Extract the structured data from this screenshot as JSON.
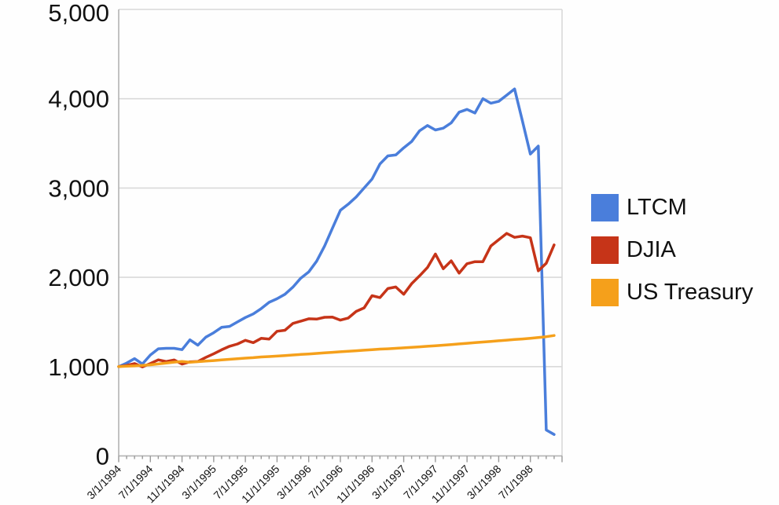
{
  "chart_data": {
    "type": "line",
    "title": "",
    "xlabel": "",
    "ylabel": "",
    "grid": "horizontal",
    "legend_position": "right",
    "ylim": [
      0,
      5000
    ],
    "y_ticks": [
      0,
      1000,
      2000,
      3000,
      4000,
      5000
    ],
    "y_tick_labels": [
      "0",
      "1,000",
      "2,000",
      "3,000",
      "4,000",
      "5,000"
    ],
    "x_axis_major_labels": [
      "3/1/1994",
      "7/1/1994",
      "11/1/1994",
      "3/1/1995",
      "7/1/1995",
      "11/1/1995",
      "3/1/1996",
      "7/1/1996",
      "11/1/1996",
      "3/1/1997",
      "7/1/1997",
      "11/1/1997",
      "3/1/1998",
      "7/1/1998"
    ],
    "x_major_label_every_n_months": 4,
    "x_minor_tick_every_n_months": 1,
    "x": [
      "3/1/1994",
      "4/1/1994",
      "5/1/1994",
      "6/1/1994",
      "7/1/1994",
      "8/1/1994",
      "9/1/1994",
      "10/1/1994",
      "11/1/1994",
      "12/1/1994",
      "1/1/1995",
      "2/1/1995",
      "3/1/1995",
      "4/1/1995",
      "5/1/1995",
      "6/1/1995",
      "7/1/1995",
      "8/1/1995",
      "9/1/1995",
      "10/1/1995",
      "11/1/1995",
      "12/1/1995",
      "1/1/1996",
      "2/1/1996",
      "3/1/1996",
      "4/1/1996",
      "5/1/1996",
      "6/1/1996",
      "7/1/1996",
      "8/1/1996",
      "9/1/1996",
      "10/1/1996",
      "11/1/1996",
      "12/1/1996",
      "1/1/1997",
      "2/1/1997",
      "3/1/1997",
      "4/1/1997",
      "5/1/1997",
      "6/1/1997",
      "7/1/1997",
      "8/1/1997",
      "9/1/1997",
      "10/1/1997",
      "11/1/1997",
      "12/1/1997",
      "1/1/1998",
      "2/1/1998",
      "3/1/1998",
      "4/1/1998",
      "5/1/1998",
      "6/1/1998",
      "7/1/1998",
      "8/1/1998",
      "9/1/1998",
      "10/1/1998"
    ],
    "series": [
      {
        "name": "LTCM",
        "color": "#4a7edb",
        "values": [
          1000,
          1040,
          1090,
          1030,
          1130,
          1200,
          1205,
          1205,
          1190,
          1300,
          1240,
          1330,
          1380,
          1440,
          1450,
          1500,
          1550,
          1590,
          1650,
          1720,
          1760,
          1810,
          1890,
          1990,
          2060,
          2180,
          2350,
          2550,
          2750,
          2820,
          2900,
          3000,
          3100,
          3270,
          3360,
          3370,
          3450,
          3520,
          3640,
          3700,
          3650,
          3670,
          3730,
          3850,
          3880,
          3840,
          4000,
          3950,
          3970,
          4040,
          4110,
          3750,
          3380,
          3470,
          290,
          240
        ]
      },
      {
        "name": "DJIA",
        "color": "#c63418",
        "values": [
          1000,
          1013,
          1034,
          997,
          1035,
          1076,
          1057,
          1075,
          1028,
          1054,
          1057,
          1103,
          1144,
          1188,
          1228,
          1253,
          1295,
          1268,
          1317,
          1308,
          1396,
          1407,
          1484,
          1509,
          1536,
          1532,
          1552,
          1555,
          1521,
          1544,
          1618,
          1658,
          1794,
          1773,
          1874,
          1892,
          1810,
          1928,
          2016,
          2110,
          2261,
          2096,
          2185,
          2047,
          2152,
          2175,
          2175,
          2350,
          2420,
          2492,
          2448,
          2462,
          2443,
          2073,
          2157,
          2363
        ]
      },
      {
        "name": "US Treasury",
        "color": "#f5a01b",
        "values": [
          1000,
          1004,
          1008,
          1013,
          1020,
          1030,
          1040,
          1050,
          1058,
          1048,
          1055,
          1062,
          1068,
          1075,
          1082,
          1089,
          1095,
          1100,
          1108,
          1113,
          1118,
          1124,
          1130,
          1136,
          1142,
          1148,
          1154,
          1160,
          1166,
          1172,
          1178,
          1184,
          1190,
          1196,
          1200,
          1205,
          1210,
          1216,
          1222,
          1228,
          1234,
          1240,
          1247,
          1254,
          1261,
          1268,
          1275,
          1282,
          1289,
          1296,
          1303,
          1310,
          1317,
          1325,
          1335,
          1348
        ]
      }
    ],
    "style": {
      "grid_color": "#d9d9d9",
      "axis_line_color": "#b3b3b3",
      "tick_color": "#999999",
      "text_color": "#111111",
      "line_width": 3.5
    }
  }
}
